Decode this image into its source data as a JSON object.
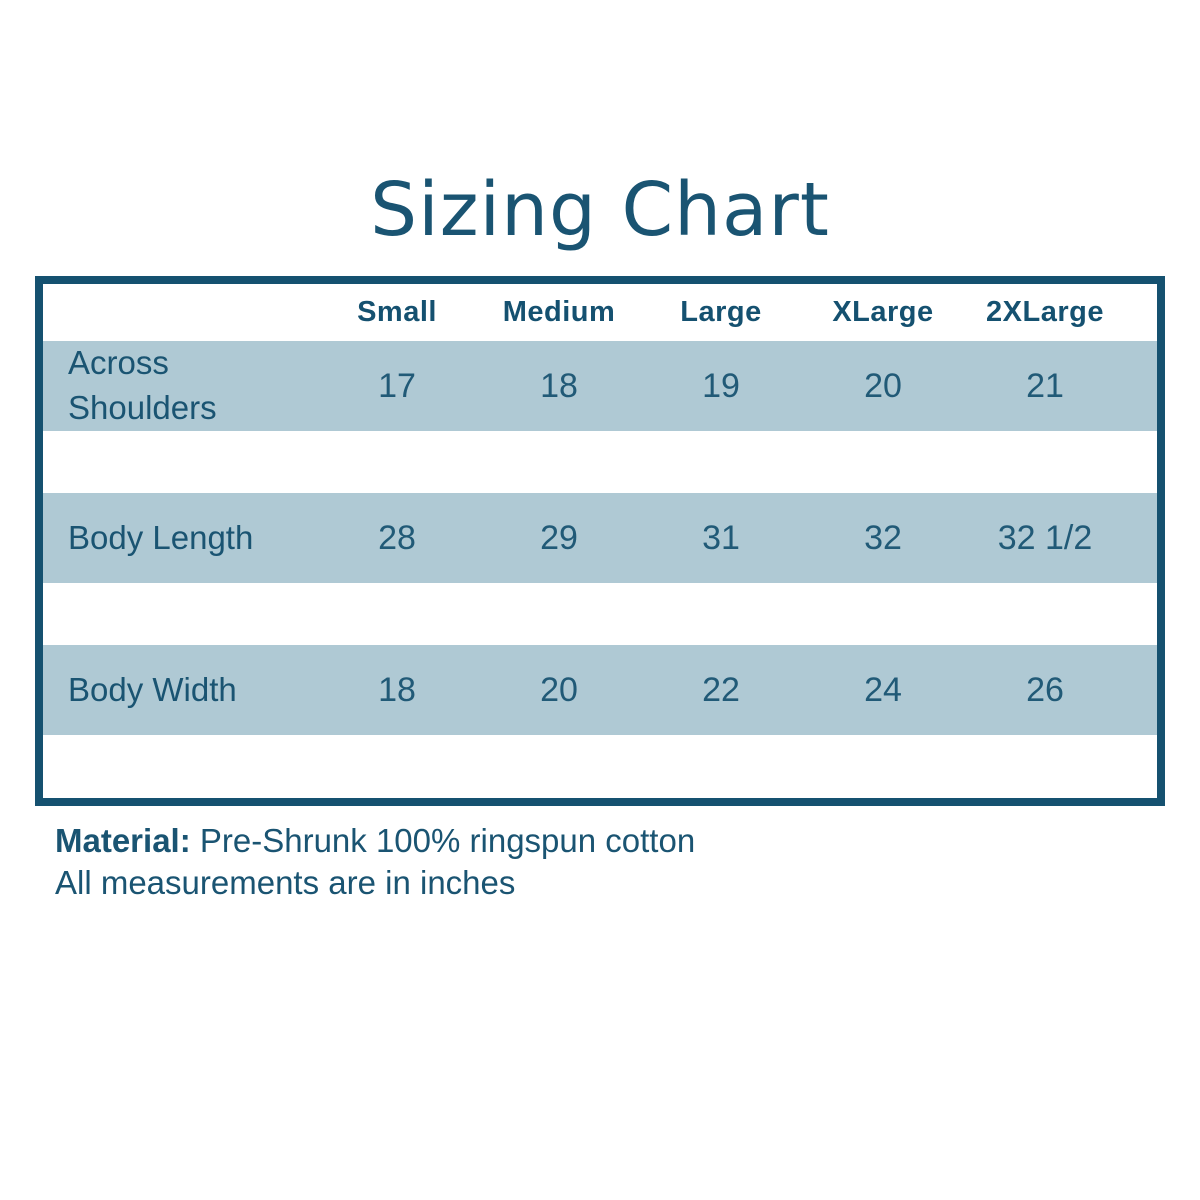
{
  "title": "Sizing Chart",
  "table": {
    "columns": [
      "Small",
      "Medium",
      "Large",
      "XLarge",
      "2XLarge"
    ],
    "rows": [
      {
        "label": "Across Shoulders",
        "values": [
          "17",
          "18",
          "19",
          "20",
          "21"
        ]
      },
      {
        "label": "Body Length",
        "values": [
          "28",
          "29",
          "31",
          "32",
          "32 1/2"
        ]
      },
      {
        "label": "Body Width",
        "values": [
          "18",
          "20",
          "22",
          "24",
          "26"
        ]
      }
    ]
  },
  "footer": {
    "material_label": "Material:",
    "material_value": " Pre-Shrunk 100% ringspun cotton",
    "note": "All measurements are in inches"
  },
  "colors": {
    "accent_text": "#1A5472",
    "border": "#155170",
    "row_background": "#AFC9D4",
    "page_background": "#FFFFFF"
  },
  "chart_data": {
    "type": "table",
    "title": "Sizing Chart",
    "columns": [
      "Small",
      "Medium",
      "Large",
      "XLarge",
      "2XLarge"
    ],
    "rows": [
      {
        "label": "Across Shoulders",
        "values": [
          17,
          18,
          19,
          20,
          21
        ]
      },
      {
        "label": "Body Length",
        "values": [
          28,
          29,
          31,
          32,
          32.5
        ]
      },
      {
        "label": "Body Width",
        "values": [
          18,
          20,
          22,
          24,
          26
        ]
      }
    ],
    "value_display": {
      "Body Length 2XLarge": "32 1/2"
    },
    "units": "inches",
    "notes": [
      "Material: Pre-Shrunk 100% ringspun cotton",
      "All measurements are in inches"
    ],
    "layout": {
      "row_striping": "alternating blue-gray bands separated by white gaps",
      "header_position": "top"
    }
  }
}
